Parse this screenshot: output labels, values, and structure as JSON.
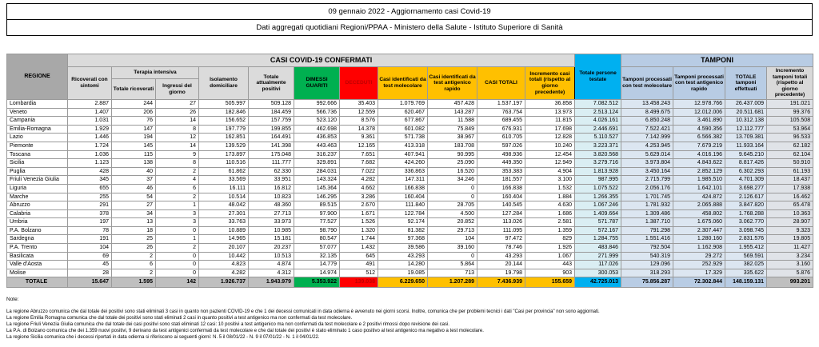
{
  "title": {
    "line1": "09 gennaio 2022 - Aggiornamento casi Covid-19",
    "line2": "Dati aggregati quotidiani Regioni/PPAA - Ministero della Salute - Istituto Superiore di Sanità"
  },
  "colors": {
    "green": "#00B050",
    "red": "#FF0000",
    "yellow": "#FFC000",
    "cyan": "#00B0F0",
    "periwinkle": "#B8CCE4",
    "light_cyan_data": "#DAEEF3",
    "light_periwinkle_data": "#DCE6F1",
    "header_gray": "#DBDBDB",
    "regione_header_gray": "#A8A8A8",
    "total_row_gray": "#BFBFBF"
  },
  "table": {
    "headers": {
      "regione": "REGIONE",
      "casi_confermati": "CASI COVID-19 CONFERMATI",
      "tamponi_group": "TAMPONI",
      "terapia_intensiva": "Terapia intensiva",
      "ricoverati_sintomi": "Ricoverati con sintomi",
      "totale_ricoverati": "Totale ricoverati",
      "ingressi_giorno": "Ingressi del giorno",
      "isolamento": "Isolamento domiciliare",
      "attualmente_positivi": "Totale attualmente positivi",
      "dimessi": "DIMESSI GUARITI",
      "deceduti": "DECEDUTI",
      "casi_molecolare": "Casi identificati da test molecolare",
      "casi_antigenico": "Casi identificati da test antigenico rapido",
      "casi_totali": "CASI TOTALI",
      "incremento_casi": "Incremento casi totali (rispetto al giorno precedente)",
      "persone_testate": "Totale persone testate",
      "tamponi_molecolare": "Tamponi processati con test molecolare",
      "tamponi_antigenico": "Tamponi processati con test antigenico rapido",
      "totale_tamponi": "TOTALE tamponi effettuati",
      "incremento_tamponi": "Incremento tamponi totali (rispetto al giorno precedente)"
    },
    "column_keys": [
      "ricoverati_sintomi",
      "totale_ricoverati",
      "ingressi_giorno",
      "isolamento",
      "attualmente_positivi",
      "dimessi",
      "deceduti",
      "casi_molecolare",
      "casi_antigenico",
      "casi_totali",
      "incremento_casi",
      "persone_testate",
      "tamponi_molecolare",
      "tamponi_antigenico",
      "totale_tamponi",
      "incremento_tamponi"
    ],
    "rows": [
      {
        "regione": "Lombardia",
        "values": [
          "2.887",
          "244",
          "27",
          "505.997",
          "509.128",
          "992.666",
          "35.403",
          "1.079.769",
          "457.428",
          "1.537.197",
          "36.858",
          "7.082.512",
          "13.458.243",
          "12.978.766",
          "26.437.009",
          "191.021"
        ]
      },
      {
        "regione": "Veneto",
        "values": [
          "1.407",
          "206",
          "26",
          "182.846",
          "184.459",
          "566.736",
          "12.559",
          "620.467",
          "143.287",
          "763.754",
          "13.973",
          "2.513.124",
          "8.499.675",
          "12.012.006",
          "20.511.681",
          "99.376"
        ]
      },
      {
        "regione": "Campania",
        "values": [
          "1.031",
          "76",
          "14",
          "156.652",
          "157.759",
          "523.120",
          "8.576",
          "677.867",
          "11.588",
          "689.455",
          "11.815",
          "4.026.161",
          "6.850.248",
          "3.461.890",
          "10.312.138",
          "105.508"
        ]
      },
      {
        "regione": "Emilia-Romagna",
        "values": [
          "1.929",
          "147",
          "8",
          "197.779",
          "199.855",
          "462.698",
          "14.378",
          "601.082",
          "75.849",
          "676.931",
          "17.698",
          "2.446.691",
          "7.522.421",
          "4.590.356",
          "12.112.777",
          "53.964"
        ]
      },
      {
        "regione": "Lazio",
        "values": [
          "1.446",
          "194",
          "12",
          "162.851",
          "164.491",
          "436.853",
          "9.361",
          "571.738",
          "38.967",
          "610.705",
          "12.828",
          "5.110.527",
          "7.142.999",
          "6.566.382",
          "13.709.381",
          "96.533"
        ]
      },
      {
        "regione": "Piemonte",
        "values": [
          "1.724",
          "145",
          "14",
          "139.529",
          "141.398",
          "443.463",
          "12.165",
          "413.318",
          "183.708",
          "597.026",
          "10.240",
          "3.223.371",
          "4.253.945",
          "7.679.219",
          "11.933.164",
          "62.182"
        ]
      },
      {
        "regione": "Toscana",
        "values": [
          "1.036",
          "115",
          "9",
          "173.897",
          "175.048",
          "316.237",
          "7.651",
          "407.941",
          "90.995",
          "498.936",
          "12.454",
          "3.820.568",
          "5.629.014",
          "4.016.196",
          "9.645.210",
          "62.104"
        ]
      },
      {
        "regione": "Sicilia",
        "values": [
          "1.123",
          "138",
          "8",
          "110.516",
          "111.777",
          "329.891",
          "7.682",
          "424.260",
          "25.090",
          "449.350",
          "12.949",
          "3.279.716",
          "3.973.804",
          "4.843.622",
          "8.817.426",
          "50.910"
        ]
      },
      {
        "regione": "Puglia",
        "values": [
          "428",
          "40",
          "2",
          "61.862",
          "62.330",
          "284.031",
          "7.022",
          "336.863",
          "16.520",
          "353.383",
          "4.904",
          "1.813.928",
          "3.450.164",
          "2.852.129",
          "6.302.293",
          "61.193"
        ]
      },
      {
        "regione": "Friuli Venezia Giulia",
        "values": [
          "345",
          "37",
          "4",
          "33.569",
          "33.951",
          "143.324",
          "4.282",
          "147.311",
          "34.246",
          "181.557",
          "3.100",
          "987.995",
          "2.715.799",
          "1.985.510",
          "4.701.309",
          "18.437"
        ]
      },
      {
        "regione": "Liguria",
        "values": [
          "655",
          "46",
          "6",
          "16.111",
          "16.812",
          "145.364",
          "4.662",
          "166.838",
          "0",
          "166.838",
          "1.532",
          "1.075.522",
          "2.056.176",
          "1.642.101",
          "3.698.277",
          "17.938"
        ]
      },
      {
        "regione": "Marche",
        "values": [
          "255",
          "54",
          "2",
          "10.514",
          "10.823",
          "146.295",
          "3.286",
          "160.404",
          "0",
          "160.404",
          "1.884",
          "1.266.355",
          "1.701.745",
          "424.872",
          "2.126.617",
          "16.462"
        ]
      },
      {
        "regione": "Abruzzo",
        "values": [
          "291",
          "27",
          "1",
          "48.042",
          "48.360",
          "89.515",
          "2.670",
          "111.840",
          "28.705",
          "140.545",
          "4.630",
          "1.067.246",
          "1.781.932",
          "2.065.888",
          "3.847.820",
          "65.478"
        ]
      },
      {
        "regione": "Calabria",
        "values": [
          "378",
          "34",
          "3",
          "27.301",
          "27.713",
          "97.900",
          "1.671",
          "122.784",
          "4.500",
          "127.284",
          "1.686",
          "1.409.664",
          "1.309.486",
          "458.802",
          "1.768.288",
          "10.363"
        ]
      },
      {
        "regione": "Umbria",
        "values": [
          "197",
          "13",
          "3",
          "33.763",
          "33.973",
          "77.527",
          "1.526",
          "92.174",
          "20.852",
          "113.026",
          "2.581",
          "571.787",
          "1.387.710",
          "1.675.060",
          "3.062.770",
          "28.907"
        ]
      },
      {
        "regione": "P.A. Bolzano",
        "values": [
          "78",
          "18",
          "0",
          "10.889",
          "10.985",
          "98.790",
          "1.320",
          "81.382",
          "29.713",
          "111.095",
          "1.359",
          "572.167",
          "791.298",
          "2.307.447",
          "3.098.745",
          "9.323"
        ]
      },
      {
        "regione": "Sardegna",
        "values": [
          "191",
          "25",
          "1",
          "14.965",
          "15.181",
          "80.547",
          "1.744",
          "97.368",
          "104",
          "97.472",
          "829",
          "1.284.755",
          "1.551.416",
          "1.280.160",
          "2.831.576",
          "19.805"
        ]
      },
      {
        "regione": "P.A. Trento",
        "values": [
          "104",
          "26",
          "2",
          "20.107",
          "20.237",
          "57.077",
          "1.432",
          "39.586",
          "39.160",
          "78.746",
          "1.926",
          "483.846",
          "792.504",
          "1.162.908",
          "1.955.412",
          "11.427"
        ]
      },
      {
        "regione": "Basilicata",
        "values": [
          "69",
          "2",
          "0",
          "10.442",
          "10.513",
          "32.135",
          "645",
          "43.293",
          "0",
          "43.293",
          "1.067",
          "271.999",
          "540.319",
          "29.272",
          "569.591",
          "3.234"
        ]
      },
      {
        "regione": "Valle d'Aosta",
        "values": [
          "45",
          "6",
          "0",
          "4.823",
          "4.874",
          "14.779",
          "491",
          "14.280",
          "5.864",
          "20.144",
          "443",
          "117.026",
          "129.096",
          "252.929",
          "382.025",
          "3.160"
        ]
      },
      {
        "regione": "Molise",
        "values": [
          "28",
          "2",
          "0",
          "4.282",
          "4.312",
          "14.974",
          "512",
          "19.085",
          "713",
          "19.798",
          "903",
          "300.053",
          "318.293",
          "17.329",
          "335.622",
          "5.876"
        ]
      }
    ],
    "total": {
      "label": "TOTALE",
      "values": [
        "15.647",
        "1.595",
        "142",
        "1.926.737",
        "1.943.979",
        "5.353.922",
        "139.038",
        "6.229.650",
        "1.207.289",
        "7.436.939",
        "155.659",
        "42.725.013",
        "75.856.287",
        "72.302.844",
        "148.159.131",
        "993.201"
      ]
    }
  },
  "notes": {
    "label": "Note:",
    "items": [
      "La regione Abruzzo comunica che dal totale dei positivi sono stati eliminati 3 casi in quanto non pazienti COVID-19 e che 1 dei decessi comunicati in data odierna è avvenuto nei giorni scorsi. Inoltre, comunica che per problemi tecnici i dati \"Casi per provincia\" non sono aggiornati.",
      "La regione Emilia Romagna comunica che dal totale dei positivi sono stati eliminati 2 casi in quanto positivi a test antigenico ma non confermati da test molecolare.",
      "La regione Friuli Venezia Giulia comunica che dal totale dei casi positivi sono stati eliminati 12 casi: 10 positivi a test antigenico ma non confermati da test molecolare e 2 positivi rimossi dopo revisione dei casi.",
      "La P.A. di Bolzano comunica che dei 1.359 nuovi positivi, 9 derivano da test antigenici confermati da test molecolare e che dal totale dei positivi è stato eliminato 1 caso positivo al test antigenico ma negativo a test molecolare.",
      "La regione Sicilia comunica che i decessi riportati in data odierna si riferiscono ai seguenti giorni: N. 5 il 08/01/22 - N. 9 il 07/01/22 - N. 1 il 04/01/22."
    ]
  }
}
